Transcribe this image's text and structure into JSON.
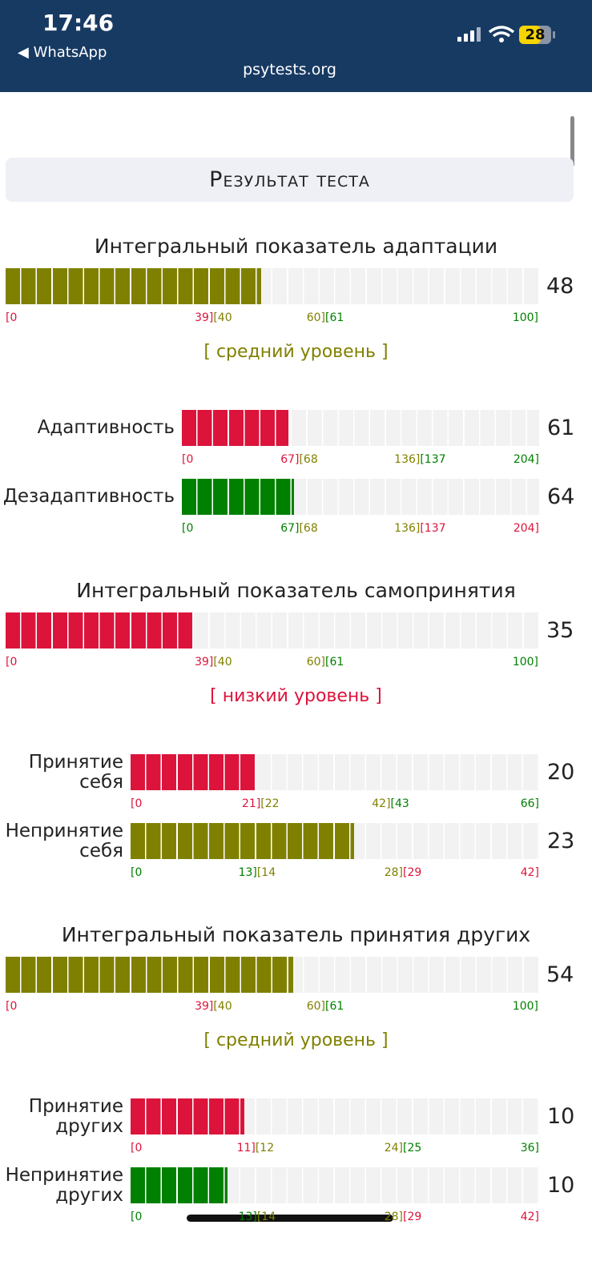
{
  "status_bar": {
    "time": "17:46",
    "back": "◀ WhatsApp",
    "url": "psytests.org",
    "battery": "28"
  },
  "title": "Результат теста",
  "sections": [
    {
      "title": "Интегральный показатель адаптации",
      "gauge": {
        "value": 48,
        "zones": [
          {
            "from": {
              "value": 0,
              "label": "[0"
            },
            "to": {
              "value": 39,
              "label": "39]"
            },
            "color": "#dc143c"
          },
          {
            "from": {
              "value": 40,
              "label": "[40"
            },
            "to": {
              "value": 60,
              "label": "60]"
            },
            "color": "#808000"
          },
          {
            "from": {
              "value": 61,
              "label": "[61"
            },
            "to": {
              "value": 100,
              "label": "100]"
            },
            "color": "#008000"
          }
        ]
      },
      "level": "[ средний уровень ]",
      "subscales": [
        {
          "label": "Адаптивность",
          "gauge": {
            "value": 61,
            "zones": [
              {
                "from": {
                  "value": 0,
                  "label": "[0"
                },
                "to": {
                  "value": 67,
                  "label": "67]"
                },
                "color": "#dc143c"
              },
              {
                "from": {
                  "value": 68,
                  "label": "[68"
                },
                "to": {
                  "value": 136,
                  "label": "136]"
                },
                "color": "#808000"
              },
              {
                "from": {
                  "value": 137,
                  "label": "[137"
                },
                "to": {
                  "value": 204,
                  "label": "204]"
                },
                "color": "#008000"
              }
            ]
          }
        },
        {
          "label": "Дезадаптивность",
          "gauge": {
            "value": 64,
            "zones": [
              {
                "from": {
                  "value": 0,
                  "label": "[0"
                },
                "to": {
                  "value": 67,
                  "label": "67]"
                },
                "color": "#008000"
              },
              {
                "from": {
                  "value": 68,
                  "label": "[68"
                },
                "to": {
                  "value": 136,
                  "label": "136]"
                },
                "color": "#808000"
              },
              {
                "from": {
                  "value": 137,
                  "label": "[137"
                },
                "to": {
                  "value": 204,
                  "label": "204]"
                },
                "color": "#dc143c"
              }
            ]
          }
        }
      ]
    },
    {
      "title": "Интегральный показатель самопринятия",
      "gauge": {
        "value": 35,
        "zones": [
          {
            "from": {
              "value": 0,
              "label": "[0"
            },
            "to": {
              "value": 39,
              "label": "39]"
            },
            "color": "#dc143c"
          },
          {
            "from": {
              "value": 40,
              "label": "[40"
            },
            "to": {
              "value": 60,
              "label": "60]"
            },
            "color": "#808000"
          },
          {
            "from": {
              "value": 61,
              "label": "[61"
            },
            "to": {
              "value": 100,
              "label": "100]"
            },
            "color": "#008000"
          }
        ]
      },
      "level": "[ низкий уровень ]",
      "subscales": [
        {
          "label": "Принятие себя",
          "gauge": {
            "value": 20,
            "zones": [
              {
                "from": {
                  "value": 0,
                  "label": "[0"
                },
                "to": {
                  "value": 21,
                  "label": "21]"
                },
                "color": "#dc143c"
              },
              {
                "from": {
                  "value": 22,
                  "label": "[22"
                },
                "to": {
                  "value": 42,
                  "label": "42]"
                },
                "color": "#808000"
              },
              {
                "from": {
                  "value": 43,
                  "label": "[43"
                },
                "to": {
                  "value": 66,
                  "label": "66]"
                },
                "color": "#008000"
              }
            ]
          }
        },
        {
          "label": "Непринятие себя",
          "gauge": {
            "value": 23,
            "zones": [
              {
                "from": {
                  "value": 0,
                  "label": "[0"
                },
                "to": {
                  "value": 13,
                  "label": "13]"
                },
                "color": "#008000"
              },
              {
                "from": {
                  "value": 14,
                  "label": "[14"
                },
                "to": {
                  "value": 28,
                  "label": "28]"
                },
                "color": "#808000"
              },
              {
                "from": {
                  "value": 29,
                  "label": "[29"
                },
                "to": {
                  "value": 42,
                  "label": "42]"
                },
                "color": "#dc143c"
              }
            ]
          }
        }
      ]
    },
    {
      "title": "Интегральный показатель принятия других",
      "gauge": {
        "value": 54,
        "zones": [
          {
            "from": {
              "value": 0,
              "label": "[0"
            },
            "to": {
              "value": 39,
              "label": "39]"
            },
            "color": "#dc143c"
          },
          {
            "from": {
              "value": 40,
              "label": "[40"
            },
            "to": {
              "value": 60,
              "label": "60]"
            },
            "color": "#808000"
          },
          {
            "from": {
              "value": 61,
              "label": "[61"
            },
            "to": {
              "value": 100,
              "label": "100]"
            },
            "color": "#008000"
          }
        ]
      },
      "level": "[ средний уровень ]",
      "subscales": [
        {
          "label": "Принятие других",
          "gauge": {
            "value": 10,
            "zones": [
              {
                "from": {
                  "value": 0,
                  "label": "[0"
                },
                "to": {
                  "value": 11,
                  "label": "11]"
                },
                "color": "#dc143c"
              },
              {
                "from": {
                  "value": 12,
                  "label": "[12"
                },
                "to": {
                  "value": 24,
                  "label": "24]"
                },
                "color": "#808000"
              },
              {
                "from": {
                  "value": 25,
                  "label": "[25"
                },
                "to": {
                  "value": 36,
                  "label": "36]"
                },
                "color": "#008000"
              }
            ]
          }
        },
        {
          "label": "Непринятие других",
          "gauge": {
            "value": 10,
            "zones": [
              {
                "from": {
                  "value": 0,
                  "label": "[0"
                },
                "to": {
                  "value": 13,
                  "label": "13]"
                },
                "color": "#008000"
              },
              {
                "from": {
                  "value": 14,
                  "label": "[14"
                },
                "to": {
                  "value": 28,
                  "label": "28]"
                },
                "color": "#808000"
              },
              {
                "from": {
                  "value": 29,
                  "label": "[29"
                },
                "to": {
                  "value": 42,
                  "label": "42]"
                },
                "color": "#dc143c"
              }
            ]
          }
        }
      ]
    }
  ]
}
